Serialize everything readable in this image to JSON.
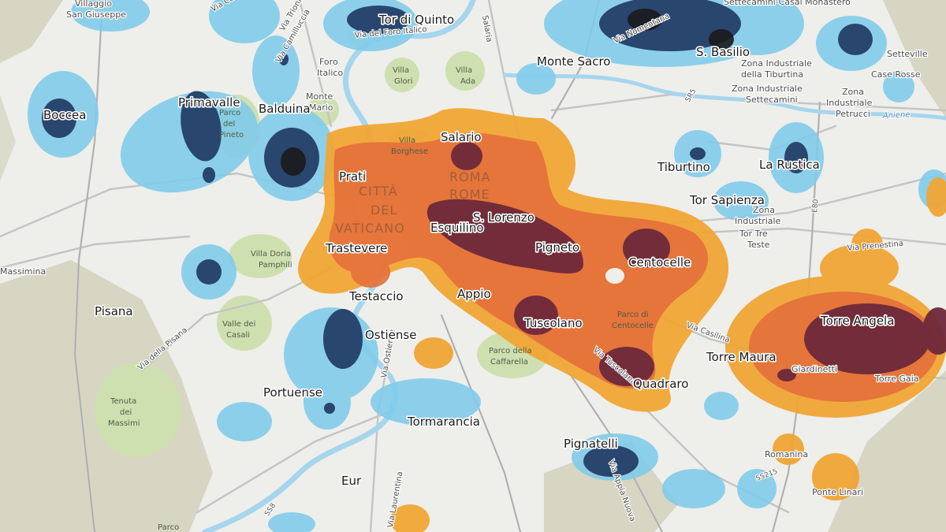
{
  "colors": {
    "background": "#eeeeea",
    "rural": "#dcdccb",
    "park": "#cfe0b0",
    "water": "#a6d5ee",
    "road": "#c7c7c7",
    "blue_light": "#7fcbeb",
    "blue_dark": "#1f3761",
    "blue_core": "#1a1a1a",
    "orange_light": "#f0a535",
    "orange_mid": "#e4713a",
    "maroon": "#6d2839"
  },
  "neighborhoods": [
    {
      "name": "Boccea"
    },
    {
      "name": "Primavalle"
    },
    {
      "name": "Balduina"
    },
    {
      "name": "Tor di Quinto"
    },
    {
      "name": "Monte Sacro"
    },
    {
      "name": "S. Basilio"
    },
    {
      "name": "Salario"
    },
    {
      "name": "Prati"
    },
    {
      "name": "S. Lorenzo"
    },
    {
      "name": "Esquilino"
    },
    {
      "name": "Tiburtino"
    },
    {
      "name": "La Rustica"
    },
    {
      "name": "Tor Sapienza"
    },
    {
      "name": "Pigneto"
    },
    {
      "name": "Centocelle"
    },
    {
      "name": "Trastevere"
    },
    {
      "name": "Testaccio"
    },
    {
      "name": "Appio"
    },
    {
      "name": "Tuscolano"
    },
    {
      "name": "Torre Angela"
    },
    {
      "name": "Torre Maura"
    },
    {
      "name": "Ostiense"
    },
    {
      "name": "Quadraro"
    },
    {
      "name": "Portuense"
    },
    {
      "name": "Tormarancia"
    },
    {
      "name": "Pignatelli"
    },
    {
      "name": "Eur"
    },
    {
      "name": "Pisana"
    }
  ],
  "basemap_labels": [
    {
      "text": "Villaggio"
    },
    {
      "text": "San Giuseppe"
    },
    {
      "text": "Settecamini-Casal Monastero"
    },
    {
      "text": "Setteville"
    },
    {
      "text": "Case Rosse"
    },
    {
      "text": "Zona Industriale"
    },
    {
      "text": "della Tiburtina"
    },
    {
      "text": "Zona Industriale"
    },
    {
      "text": "Settecamini"
    },
    {
      "text": "Zona"
    },
    {
      "text": "Industriale"
    },
    {
      "text": "Petrucci"
    },
    {
      "text": "Foro"
    },
    {
      "text": "Italico"
    },
    {
      "text": "Monte"
    },
    {
      "text": "Mario"
    },
    {
      "text": "Villa"
    },
    {
      "text": "Glori"
    },
    {
      "text": "Villa"
    },
    {
      "text": "Ada"
    },
    {
      "text": "Villa"
    },
    {
      "text": "Borghese"
    },
    {
      "text": "Zona"
    },
    {
      "text": "Industriale"
    },
    {
      "text": "Tor Tre"
    },
    {
      "text": "Teste"
    },
    {
      "text": "Giardinetti"
    },
    {
      "text": "Torre Gaia"
    },
    {
      "text": "Romanina"
    },
    {
      "text": "Ponte Linari"
    },
    {
      "text": "Massimina"
    },
    {
      "text": "Parco di"
    },
    {
      "text": "Centocelle"
    },
    {
      "text": "Parco della"
    },
    {
      "text": "Caffarella"
    },
    {
      "text": "Valle dei"
    },
    {
      "text": "Casali"
    },
    {
      "text": "Villa Doria"
    },
    {
      "text": "Pamphili"
    },
    {
      "text": "Tenuta"
    },
    {
      "text": "dei"
    },
    {
      "text": "Massimi"
    },
    {
      "text": "Parco"
    },
    {
      "text": "del"
    },
    {
      "text": "Pineto"
    },
    {
      "text": "Parco"
    }
  ],
  "district_labels": [
    {
      "text": "CITTÀ"
    },
    {
      "text": "DEL"
    },
    {
      "text": "VATICANO"
    },
    {
      "text": "ROMA"
    },
    {
      "text": "ROME"
    }
  ],
  "road_labels": [
    {
      "text": "Via del Foro Italico"
    },
    {
      "text": "Via Nomentana"
    },
    {
      "text": "Salaria"
    },
    {
      "text": "Via Prenestina"
    },
    {
      "text": "Via Casilina"
    },
    {
      "text": "Via Tuscolana"
    },
    {
      "text": "Via Appia Nuova"
    },
    {
      "text": "Via della Pisana"
    },
    {
      "text": "Via Ostiense"
    },
    {
      "text": "Via Laurentina"
    },
    {
      "text": "Via Cassia"
    },
    {
      "text": "Via Camilluccia"
    },
    {
      "text": "Aniene"
    },
    {
      "text": "SR5"
    },
    {
      "text": "E80"
    },
    {
      "text": "SS215"
    },
    {
      "text": "SS8"
    },
    {
      "text": "Via Trionfale"
    }
  ]
}
